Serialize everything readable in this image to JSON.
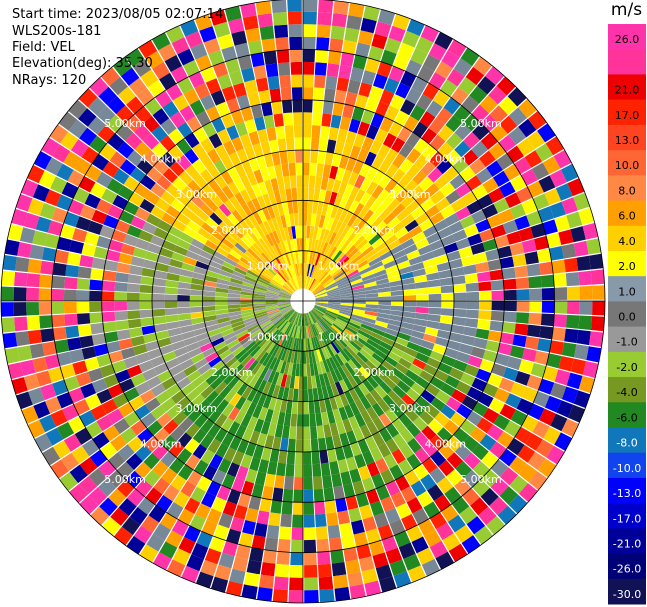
{
  "header": {
    "start_time": "Start time: 2023/08/05 02:07:14",
    "instrument": "WLS200s-181",
    "field": "Field: VEL",
    "elevation": "Elevation(deg): 35.30",
    "nrays": "NRays: 120"
  },
  "colorbar": {
    "unit": "m/s",
    "bins": [
      {
        "label": "26.0",
        "color": "#ff33aa",
        "label_color": "#000000"
      },
      {
        "label": "",
        "color": "#ff3399",
        "label_color": "#000000"
      },
      {
        "label": "21.0",
        "color": "#ee0000",
        "label_color": "#000000"
      },
      {
        "label": "17.0",
        "color": "#ff2200",
        "label_color": "#000000"
      },
      {
        "label": "13.0",
        "color": "#ff4422",
        "label_color": "#000000"
      },
      {
        "label": "10.0",
        "color": "#ff6633",
        "label_color": "#000000"
      },
      {
        "label": "8.0",
        "color": "#ff8844",
        "label_color": "#000000"
      },
      {
        "label": "6.0",
        "color": "#ffa000",
        "label_color": "#000000"
      },
      {
        "label": "4.0",
        "color": "#ffd000",
        "label_color": "#000000"
      },
      {
        "label": "2.0",
        "color": "#ffff00",
        "label_color": "#000000"
      },
      {
        "label": "1.0",
        "color": "#8899aa",
        "label_color": "#000000"
      },
      {
        "label": "0.0",
        "color": "#777777",
        "label_color": "#000000"
      },
      {
        "label": "-1.0",
        "color": "#999999",
        "label_color": "#000000"
      },
      {
        "label": "-2.0",
        "color": "#99cc33",
        "label_color": "#000000"
      },
      {
        "label": "-4.0",
        "color": "#779922",
        "label_color": "#000000"
      },
      {
        "label": "-6.0",
        "color": "#228822",
        "label_color": "#000000"
      },
      {
        "label": "-8.0",
        "color": "#1177bb",
        "label_color": "#ffffff"
      },
      {
        "label": "-10.0",
        "color": "#1144ee",
        "label_color": "#ffffff"
      },
      {
        "label": "-13.0",
        "color": "#0000ff",
        "label_color": "#ffffff"
      },
      {
        "label": "-17.0",
        "color": "#0000cc",
        "label_color": "#ffffff"
      },
      {
        "label": "-21.0",
        "color": "#000099",
        "label_color": "#ffffff"
      },
      {
        "label": "-26.0",
        "color": "#000077",
        "label_color": "#ffffff"
      },
      {
        "label": "-30.0",
        "color": "#111155",
        "label_color": "#ffffff"
      }
    ]
  },
  "chart_data": {
    "type": "heatmap",
    "subtype": "polar-ppi",
    "field": "VEL",
    "unit": "m/s",
    "nrays": 120,
    "range_rings_km": [
      1,
      2,
      3,
      4,
      5,
      6
    ],
    "ring_labels": [
      "1.00km",
      "2.00km",
      "3.00km",
      "4.00km",
      "5.00km"
    ],
    "velocity_range": [
      -30,
      26
    ],
    "sector_description": {
      "north_inner": "2.0 to 6.0 m/s (yellow/orange)",
      "east_inner": "0.0 to 1.0 m/s (gray)",
      "south_inner": "-2.0 to -6.0 m/s (green)",
      "west_inner": "-1.0 to -4.0 m/s (gray/olive)",
      "outer_rings": "noise, mixed values"
    }
  }
}
